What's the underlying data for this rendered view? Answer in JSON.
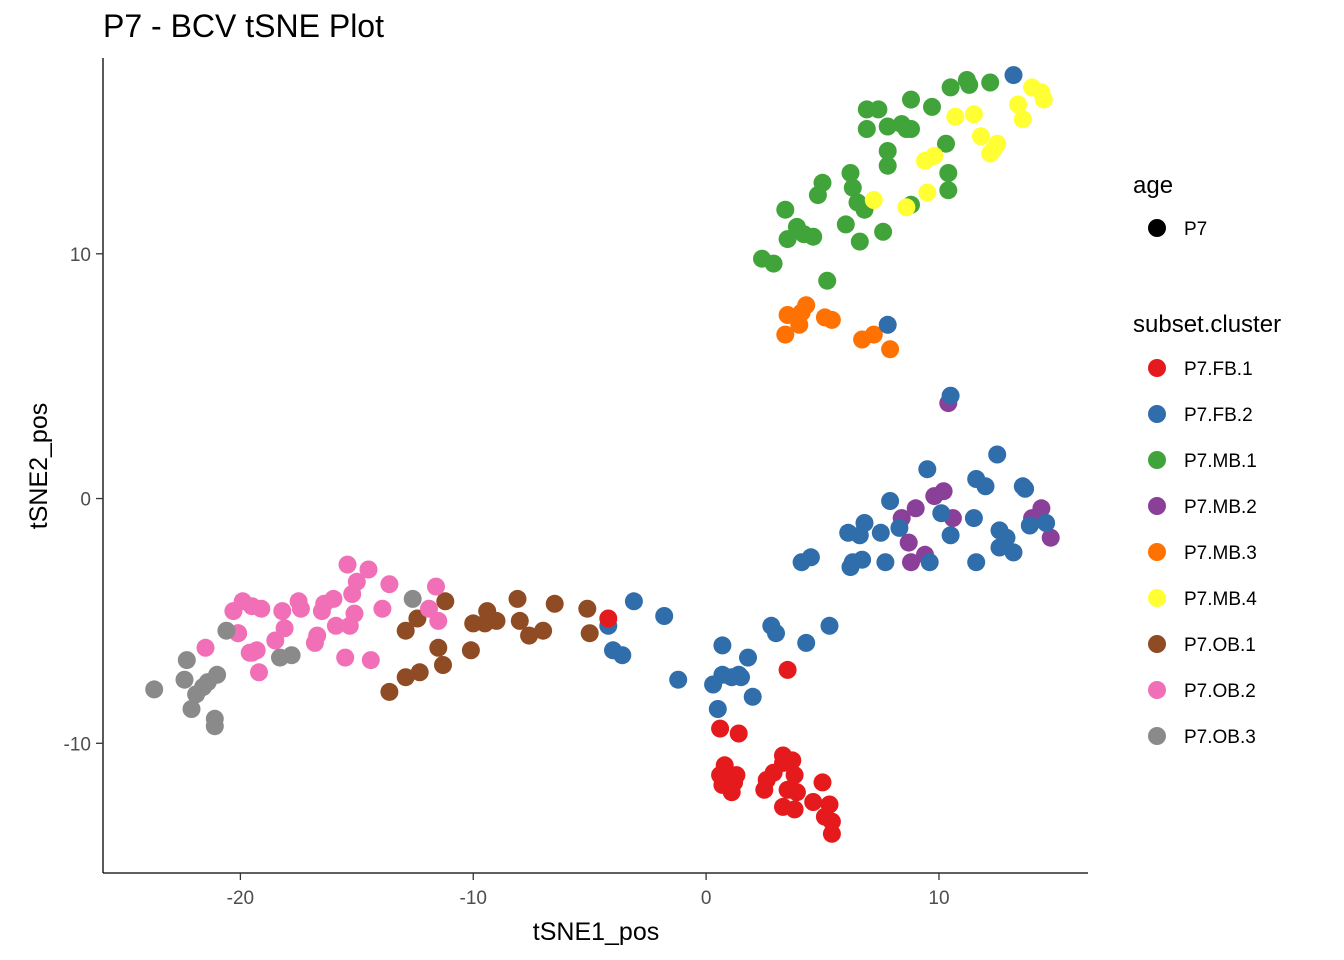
{
  "chart_data": {
    "type": "scatter",
    "title": "P7 - BCV tSNE Plot",
    "xlabel": "tSNE1_pos",
    "ylabel": "tSNE2_pos",
    "xlim": [
      -25.9,
      16.4
    ],
    "ylim": [
      -15.3,
      18.0
    ],
    "x_ticks": [
      -20,
      -10,
      0,
      10
    ],
    "y_ticks": [
      -10,
      0,
      10
    ],
    "grid": false,
    "legend_position": "right",
    "legends": [
      {
        "title": "age",
        "entries": [
          {
            "label": "P7",
            "color": "#000000"
          }
        ]
      },
      {
        "title": "subset.cluster",
        "entries": [
          {
            "label": "P7.FB.1",
            "color": "#E41A1C"
          },
          {
            "label": "P7.FB.2",
            "color": "#2F6DAB"
          },
          {
            "label": "P7.MB.1",
            "color": "#41A43A"
          },
          {
            "label": "P7.MB.2",
            "color": "#8A3F99"
          },
          {
            "label": "P7.MB.3",
            "color": "#FF7100"
          },
          {
            "label": "P7.MB.4",
            "color": "#FFFF33"
          },
          {
            "label": "P7.OB.1",
            "color": "#8E4B24"
          },
          {
            "label": "P7.OB.2",
            "color": "#F06FB7"
          },
          {
            "label": "P7.OB.3",
            "color": "#8A8A8A"
          }
        ]
      }
    ],
    "series": [
      {
        "name": "P7.MB.1",
        "color": "#41A43A",
        "points": [
          [
            2.4,
            9.8
          ],
          [
            2.9,
            9.6
          ],
          [
            3.5,
            10.6
          ],
          [
            3.4,
            11.8
          ],
          [
            3.9,
            11.1
          ],
          [
            4.2,
            10.8
          ],
          [
            4.6,
            10.7
          ],
          [
            5.2,
            8.9
          ],
          [
            4.8,
            12.4
          ],
          [
            5.0,
            12.9
          ],
          [
            6.0,
            11.2
          ],
          [
            6.3,
            12.7
          ],
          [
            6.2,
            13.3
          ],
          [
            6.5,
            12.1
          ],
          [
            6.8,
            11.8
          ],
          [
            6.6,
            10.5
          ],
          [
            7.6,
            10.9
          ],
          [
            7.8,
            13.6
          ],
          [
            7.8,
            14.2
          ],
          [
            6.9,
            15.1
          ],
          [
            6.9,
            15.9
          ],
          [
            7.4,
            15.9
          ],
          [
            7.8,
            15.2
          ],
          [
            8.4,
            15.3
          ],
          [
            8.6,
            15.1
          ],
          [
            8.8,
            15.1
          ],
          [
            8.8,
            16.3
          ],
          [
            9.7,
            16.0
          ],
          [
            10.3,
            14.5
          ],
          [
            10.4,
            13.3
          ],
          [
            10.4,
            12.6
          ],
          [
            10.5,
            16.8
          ],
          [
            11.2,
            17.1
          ],
          [
            11.3,
            16.9
          ],
          [
            12.2,
            17.0
          ],
          [
            8.8,
            12.0
          ]
        ]
      },
      {
        "name": "P7.MB.4",
        "color": "#FFFF33",
        "points": [
          [
            7.2,
            12.2
          ],
          [
            8.6,
            11.9
          ],
          [
            9.4,
            13.8
          ],
          [
            9.8,
            14.0
          ],
          [
            9.5,
            12.5
          ],
          [
            10.7,
            15.6
          ],
          [
            11.5,
            15.7
          ],
          [
            11.8,
            14.8
          ],
          [
            12.2,
            14.1
          ],
          [
            12.5,
            14.5
          ],
          [
            13.4,
            16.1
          ],
          [
            13.6,
            15.5
          ],
          [
            14.0,
            16.8
          ],
          [
            14.4,
            16.6
          ],
          [
            14.5,
            16.3
          ],
          [
            12.3,
            14.2
          ]
        ]
      },
      {
        "name": "P7.MB.3",
        "color": "#FF7100",
        "points": [
          [
            3.4,
            6.7
          ],
          [
            3.5,
            7.5
          ],
          [
            4.0,
            7.1
          ],
          [
            4.1,
            7.6
          ],
          [
            4.3,
            7.9
          ],
          [
            5.1,
            7.4
          ],
          [
            5.4,
            7.3
          ],
          [
            6.7,
            6.5
          ],
          [
            7.2,
            6.7
          ],
          [
            7.9,
            6.1
          ]
        ]
      },
      {
        "name": "P7.MB.2",
        "color": "#8A3F99",
        "points": [
          [
            10.4,
            3.9
          ],
          [
            8.4,
            -0.8
          ],
          [
            8.7,
            -1.8
          ],
          [
            8.8,
            -2.6
          ],
          [
            9.4,
            -2.3
          ],
          [
            9.0,
            -0.4
          ],
          [
            9.8,
            0.1
          ],
          [
            10.2,
            0.3
          ],
          [
            10.6,
            -0.8
          ],
          [
            14.4,
            -0.4
          ],
          [
            14.0,
            -0.8
          ],
          [
            14.8,
            -1.6
          ]
        ]
      },
      {
        "name": "P7.FB.2",
        "color": "#2F6DAB",
        "points": [
          [
            13.2,
            17.3
          ],
          [
            7.8,
            7.1
          ],
          [
            10.5,
            4.2
          ],
          [
            9.5,
            1.2
          ],
          [
            12.5,
            1.8
          ],
          [
            11.6,
            0.8
          ],
          [
            12.0,
            0.5
          ],
          [
            13.6,
            0.5
          ],
          [
            13.7,
            0.4
          ],
          [
            11.5,
            -0.8
          ],
          [
            12.6,
            -1.3
          ],
          [
            12.9,
            -1.6
          ],
          [
            13.2,
            -2.2
          ],
          [
            13.9,
            -1.1
          ],
          [
            14.6,
            -1.0
          ],
          [
            12.6,
            -2.0
          ],
          [
            11.6,
            -2.6
          ],
          [
            10.1,
            -0.6
          ],
          [
            10.5,
            -1.5
          ],
          [
            9.6,
            -2.6
          ],
          [
            8.3,
            -1.2
          ],
          [
            7.9,
            -0.1
          ],
          [
            6.8,
            -1.0
          ],
          [
            6.1,
            -1.4
          ],
          [
            6.6,
            -1.5
          ],
          [
            7.5,
            -1.4
          ],
          [
            7.7,
            -2.6
          ],
          [
            6.7,
            -2.5
          ],
          [
            6.3,
            -2.6
          ],
          [
            6.2,
            -2.8
          ],
          [
            4.5,
            -2.4
          ],
          [
            4.1,
            -2.6
          ],
          [
            2.8,
            -5.2
          ],
          [
            3.0,
            -5.5
          ],
          [
            5.3,
            -5.2
          ],
          [
            4.3,
            -5.9
          ],
          [
            1.8,
            -6.5
          ],
          [
            2.0,
            -8.1
          ],
          [
            1.4,
            -7.2
          ],
          [
            1.5,
            -7.3
          ],
          [
            1.1,
            -7.3
          ],
          [
            0.7,
            -6.0
          ],
          [
            0.7,
            -7.2
          ],
          [
            0.3,
            -7.6
          ],
          [
            0.5,
            -8.6
          ],
          [
            -1.2,
            -7.4
          ],
          [
            -1.8,
            -4.8
          ],
          [
            -3.1,
            -4.2
          ],
          [
            -4.2,
            -5.2
          ],
          [
            -4.0,
            -6.2
          ],
          [
            -3.6,
            -6.4
          ]
        ]
      },
      {
        "name": "P7.FB.1",
        "color": "#E41A1C",
        "points": [
          [
            -4.2,
            -4.9
          ],
          [
            3.5,
            -7.0
          ],
          [
            0.6,
            -9.4
          ],
          [
            1.4,
            -9.6
          ],
          [
            0.8,
            -10.9
          ],
          [
            0.6,
            -11.3
          ],
          [
            0.7,
            -11.7
          ],
          [
            1.2,
            -11.6
          ],
          [
            1.3,
            -11.3
          ],
          [
            1.1,
            -12.0
          ],
          [
            2.5,
            -11.9
          ],
          [
            2.6,
            -11.5
          ],
          [
            2.9,
            -11.2
          ],
          [
            3.3,
            -10.8
          ],
          [
            3.3,
            -10.5
          ],
          [
            3.7,
            -10.7
          ],
          [
            3.8,
            -11.3
          ],
          [
            3.5,
            -11.9
          ],
          [
            3.9,
            -12.0
          ],
          [
            3.3,
            -12.6
          ],
          [
            3.8,
            -12.7
          ],
          [
            4.6,
            -12.4
          ],
          [
            5.0,
            -11.6
          ],
          [
            5.3,
            -12.5
          ],
          [
            5.1,
            -13.0
          ],
          [
            5.4,
            -13.2
          ],
          [
            5.4,
            -13.7
          ]
        ]
      },
      {
        "name": "P7.OB.1",
        "color": "#8E4B24",
        "points": [
          [
            -6.5,
            -4.3
          ],
          [
            -5.1,
            -4.5
          ],
          [
            -5.0,
            -5.5
          ],
          [
            -7.0,
            -5.4
          ],
          [
            -7.6,
            -5.6
          ],
          [
            -8.0,
            -5.0
          ],
          [
            -8.1,
            -4.1
          ],
          [
            -9.0,
            -5.0
          ],
          [
            -9.4,
            -4.6
          ],
          [
            -9.5,
            -5.1
          ],
          [
            -10.1,
            -6.2
          ],
          [
            -10.0,
            -5.1
          ],
          [
            -11.2,
            -4.2
          ],
          [
            -11.5,
            -6.1
          ],
          [
            -11.3,
            -6.8
          ],
          [
            -12.3,
            -7.1
          ],
          [
            -12.9,
            -7.3
          ],
          [
            -12.4,
            -4.9
          ],
          [
            -12.9,
            -5.4
          ],
          [
            -13.6,
            -7.9
          ]
        ]
      },
      {
        "name": "P7.OB.2",
        "color": "#F06FB7",
        "points": [
          [
            -15.4,
            -2.7
          ],
          [
            -14.5,
            -2.9
          ],
          [
            -15.0,
            -3.4
          ],
          [
            -15.2,
            -3.9
          ],
          [
            -13.6,
            -3.5
          ],
          [
            -13.9,
            -4.5
          ],
          [
            -11.6,
            -3.6
          ],
          [
            -11.9,
            -4.5
          ],
          [
            -11.5,
            -5.0
          ],
          [
            -15.1,
            -4.7
          ],
          [
            -15.3,
            -5.2
          ],
          [
            -16.0,
            -4.1
          ],
          [
            -16.4,
            -4.3
          ],
          [
            -16.5,
            -4.6
          ],
          [
            -16.7,
            -5.6
          ],
          [
            -16.8,
            -5.9
          ],
          [
            -15.9,
            -5.2
          ],
          [
            -17.5,
            -4.2
          ],
          [
            -17.4,
            -4.5
          ],
          [
            -18.2,
            -4.6
          ],
          [
            -18.1,
            -5.3
          ],
          [
            -18.5,
            -5.8
          ],
          [
            -19.1,
            -4.5
          ],
          [
            -19.5,
            -4.4
          ],
          [
            -19.9,
            -4.2
          ],
          [
            -20.3,
            -4.6
          ],
          [
            -20.1,
            -5.5
          ],
          [
            -19.5,
            -6.3
          ],
          [
            -19.2,
            -7.1
          ],
          [
            -19.3,
            -6.2
          ],
          [
            -15.5,
            -6.5
          ],
          [
            -14.4,
            -6.6
          ],
          [
            -21.5,
            -6.1
          ],
          [
            -19.6,
            -6.3
          ],
          [
            -20.1,
            -5.5
          ]
        ]
      },
      {
        "name": "P7.OB.3",
        "color": "#8A8A8A",
        "points": [
          [
            -12.6,
            -4.1
          ],
          [
            -17.8,
            -6.4
          ],
          [
            -18.3,
            -6.5
          ],
          [
            -20.6,
            -5.4
          ],
          [
            -21.0,
            -7.2
          ],
          [
            -21.4,
            -7.5
          ],
          [
            -21.6,
            -7.7
          ],
          [
            -21.9,
            -8.0
          ],
          [
            -22.4,
            -7.4
          ],
          [
            -22.3,
            -6.6
          ],
          [
            -22.1,
            -8.6
          ],
          [
            -23.7,
            -7.8
          ],
          [
            -21.1,
            -9.0
          ],
          [
            -21.1,
            -9.3
          ]
        ]
      }
    ]
  }
}
